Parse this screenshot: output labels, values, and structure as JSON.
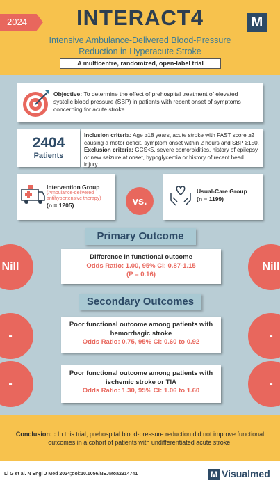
{
  "header": {
    "year": "2024",
    "title": "INTERACT4",
    "logo": "M",
    "subtitle": "Intensive Ambulance-Delivered Blood-Pressure Reduction in Hyperacute Stroke",
    "design": "A multicentre, randomized, open-label trial"
  },
  "objective": {
    "label": "Objective:",
    "text": "To determine the effect of prehospital treatment of elevated systolic blood pressure (SBP) in patients with recent onset of symptoms concerning for acute stroke."
  },
  "patients": {
    "count": 2404,
    "label": "Patients"
  },
  "criteria": {
    "inclusion_label": "Inclusion criteria:",
    "inclusion": "Age ≥18 years, acute stroke with FAST score ≥2 causing a motor deficit, symptom onset within 2 hours and SBP ≥150.",
    "exclusion_label": "Exclusion criteria:",
    "exclusion": "GCS<5, severe comorbidities, history of epilepsy or new seizure at onset, hypoglycemia or history of recent head injury."
  },
  "groups": {
    "intervention": {
      "name": "Intervention Group",
      "note": "(Ambulance-delivered antihypertensive therapy)",
      "n": "(n = 1205)"
    },
    "versus": "vs.",
    "usual": {
      "name": "Usual-Care Group",
      "n": "(n = 1199)"
    }
  },
  "primary": {
    "heading": "Primary Outcome",
    "side_label": "Nill",
    "title": "Difference in functional outcome",
    "result": "Odds Ratio: 1.00, 95% CI: 0.87-1.15",
    "p": "(P = 0.16)"
  },
  "secondary": {
    "heading": "Secondary Outcomes",
    "outcomes": [
      {
        "side_label": "-",
        "title": "Poor functional outcome among patients with hemorrhagic stroke",
        "result": "Odds Ratio: 0.75, 95% CI: 0.60 to 0.92"
      },
      {
        "side_label": "-",
        "title": "Poor functional outcome among patients with ischemic stroke or TIA",
        "result": "Odds Ratio: 1.30, 95% CI: 1.06 to 1.60"
      }
    ]
  },
  "conclusion": {
    "label": "Conclusion: :",
    "text": "In this trial, prehospital blood-pressure reduction did not improve functional outcomes in a cohort of patients with undifferentiated acute stroke."
  },
  "footer": {
    "citation": "Li G et al. N Engl J Med 2024;doi:10.1056/NEJMoa2314741",
    "logo": "M",
    "brand": "Visualmed"
  }
}
